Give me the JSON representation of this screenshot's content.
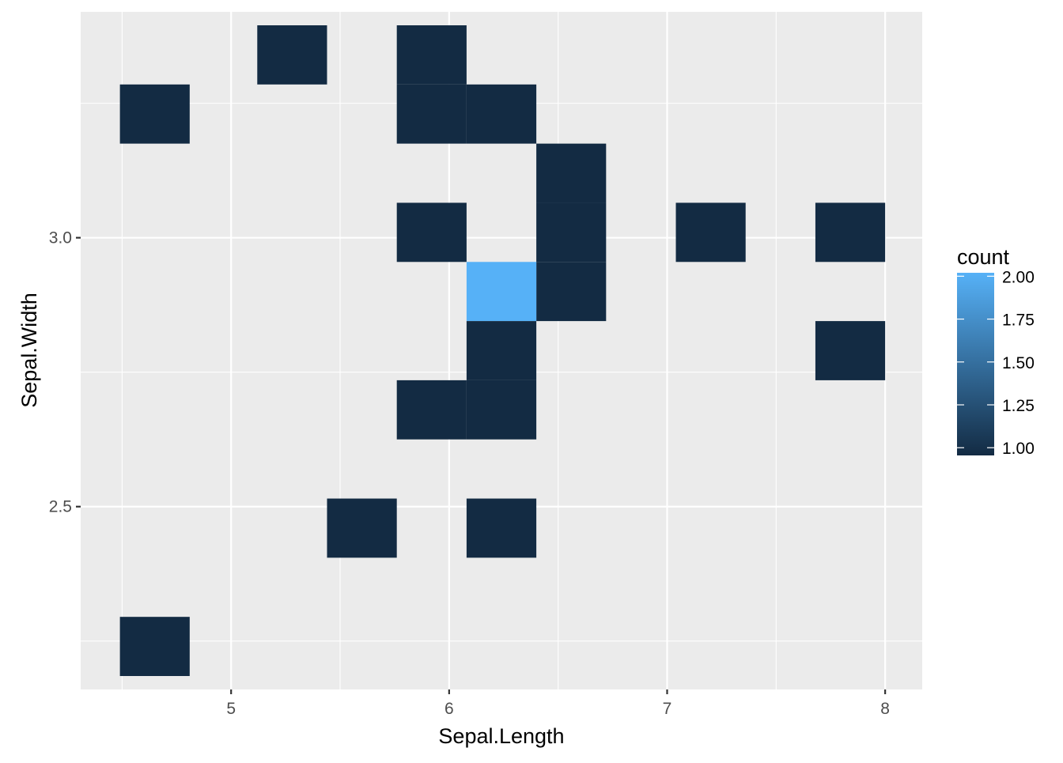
{
  "chart_data": {
    "type": "heatmap",
    "xlabel": "Sepal.Length",
    "ylabel": "Sepal.Width",
    "x_ticks": [
      {
        "value": 5,
        "label": "5"
      },
      {
        "value": 6,
        "label": "6"
      },
      {
        "value": 7,
        "label": "7"
      },
      {
        "value": 8,
        "label": "8"
      }
    ],
    "y_ticks": [
      {
        "value": 2.5,
        "label": "2.5"
      },
      {
        "value": 3.0,
        "label": "3.0"
      }
    ],
    "xlim": [
      4.31,
      8.17
    ],
    "ylim": [
      2.16,
      3.42
    ],
    "x_minor": [
      4.5,
      5.5,
      6.5,
      7.5
    ],
    "y_minor": [
      2.25,
      2.75,
      3.25
    ],
    "bin_width_x": 0.32,
    "bin_height_y": 0.11,
    "grid": true,
    "legend_title": "count",
    "legend_position": "right",
    "color_low": "#132B43",
    "color_high": "#56B1F7",
    "legend_ticks": [
      {
        "value": 1.0,
        "label": "1.00"
      },
      {
        "value": 1.25,
        "label": "1.25"
      },
      {
        "value": 1.5,
        "label": "1.50"
      },
      {
        "value": 1.75,
        "label": "1.75"
      },
      {
        "value": 2.0,
        "label": "2.00"
      }
    ],
    "count_range": [
      1,
      2
    ],
    "bins": [
      {
        "x": 4.65,
        "y": 3.23,
        "count": 1
      },
      {
        "x": 5.28,
        "y": 3.34,
        "count": 1
      },
      {
        "x": 5.92,
        "y": 3.34,
        "count": 1
      },
      {
        "x": 5.92,
        "y": 3.23,
        "count": 1
      },
      {
        "x": 6.24,
        "y": 3.23,
        "count": 1
      },
      {
        "x": 6.56,
        "y": 3.12,
        "count": 1
      },
      {
        "x": 6.56,
        "y": 3.01,
        "count": 1
      },
      {
        "x": 6.56,
        "y": 2.9,
        "count": 1
      },
      {
        "x": 5.92,
        "y": 3.01,
        "count": 1
      },
      {
        "x": 7.2,
        "y": 3.01,
        "count": 1
      },
      {
        "x": 7.84,
        "y": 3.01,
        "count": 1
      },
      {
        "x": 6.24,
        "y": 2.9,
        "count": 2
      },
      {
        "x": 6.24,
        "y": 2.79,
        "count": 1
      },
      {
        "x": 7.84,
        "y": 2.79,
        "count": 1
      },
      {
        "x": 5.92,
        "y": 2.68,
        "count": 1
      },
      {
        "x": 6.24,
        "y": 2.68,
        "count": 1
      },
      {
        "x": 5.6,
        "y": 2.46,
        "count": 1
      },
      {
        "x": 6.24,
        "y": 2.46,
        "count": 1
      },
      {
        "x": 4.65,
        "y": 2.24,
        "count": 1
      }
    ]
  }
}
